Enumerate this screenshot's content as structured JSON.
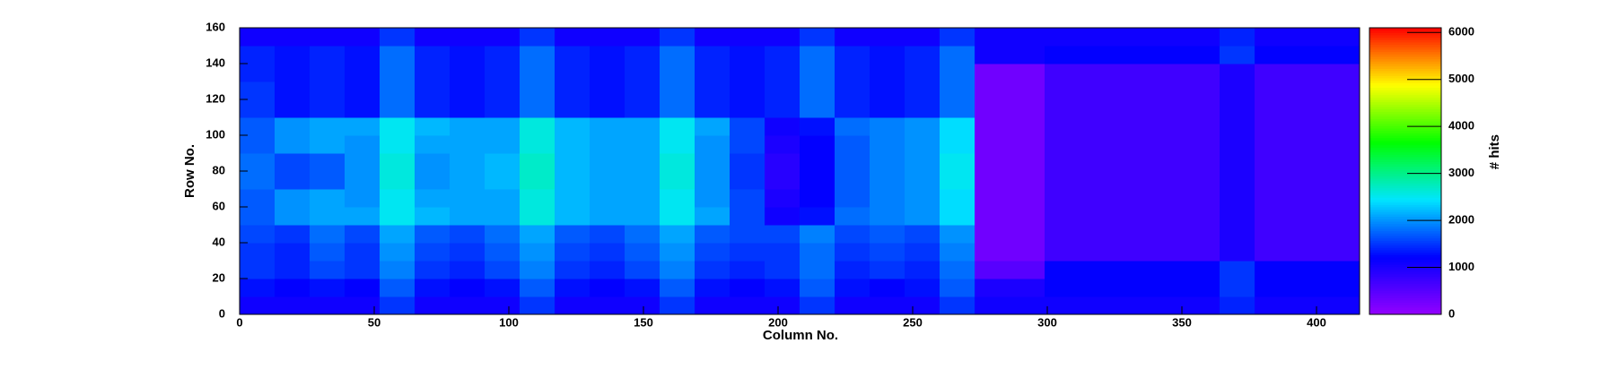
{
  "chart_data": {
    "type": "heatmap",
    "x_label": "Column No.",
    "y_label": "Row No.",
    "z_label": "# hits",
    "xbins": [
      0,
      13,
      26,
      39,
      52,
      65,
      78,
      91,
      104,
      117,
      130,
      143,
      156,
      169,
      182,
      195,
      208,
      221,
      234,
      247,
      260,
      273,
      286,
      299,
      312,
      325,
      338,
      351,
      364,
      377,
      390,
      403,
      416
    ],
    "ybins": [
      0,
      10,
      20,
      30,
      40,
      50,
      60,
      70,
      80,
      90,
      100,
      110,
      120,
      130,
      140,
      150,
      160
    ],
    "z": [
      [
        1100,
        1100,
        1100,
        1100,
        1500,
        1100,
        1100,
        1100,
        1500,
        1100,
        1100,
        1100,
        1500,
        1100,
        1100,
        1100,
        1500,
        1100,
        1100,
        1100,
        1500,
        1100,
        1100,
        1100,
        1100,
        1100,
        1100,
        1100,
        1400,
        1100,
        1100,
        1100
      ],
      [
        1300,
        1200,
        1300,
        1200,
        1700,
        1300,
        1200,
        1300,
        1700,
        1300,
        1200,
        1300,
        1700,
        1300,
        1200,
        1300,
        1700,
        1300,
        1200,
        1300,
        1700,
        1000,
        1000,
        1200,
        1200,
        1200,
        1200,
        1200,
        1500,
        1200,
        1200,
        1200
      ],
      [
        1500,
        1400,
        1600,
        1500,
        1900,
        1500,
        1400,
        1600,
        1900,
        1500,
        1400,
        1600,
        1900,
        1500,
        1400,
        1500,
        1800,
        1400,
        1500,
        1400,
        1800,
        500,
        500,
        1200,
        1200,
        1200,
        1200,
        1200,
        1500,
        1200,
        1200,
        1200
      ],
      [
        1500,
        1400,
        1700,
        1500,
        2000,
        1600,
        1500,
        1700,
        2000,
        1600,
        1500,
        1700,
        2000,
        1600,
        1500,
        1500,
        1800,
        1500,
        1600,
        1500,
        1900,
        300,
        300,
        700,
        700,
        700,
        700,
        700,
        1000,
        700,
        700,
        700
      ],
      [
        1600,
        1500,
        1800,
        1600,
        2100,
        1700,
        1600,
        1800,
        2100,
        1700,
        1600,
        1800,
        2100,
        1700,
        1600,
        1600,
        1900,
        1600,
        1700,
        1600,
        2000,
        300,
        300,
        700,
        700,
        700,
        700,
        700,
        1000,
        700,
        700,
        700
      ],
      [
        1700,
        2000,
        2100,
        2100,
        2500,
        2200,
        2100,
        2100,
        2600,
        2200,
        2100,
        2100,
        2500,
        2100,
        1600,
        1100,
        1300,
        1800,
        1900,
        2000,
        2400,
        300,
        300,
        700,
        700,
        700,
        700,
        700,
        1000,
        700,
        700,
        700
      ],
      [
        1700,
        2000,
        2100,
        2000,
        2500,
        2100,
        2100,
        2100,
        2600,
        2200,
        2100,
        2100,
        2500,
        2000,
        1600,
        1000,
        1200,
        1700,
        1900,
        2000,
        2400,
        300,
        300,
        700,
        700,
        700,
        700,
        700,
        1000,
        700,
        700,
        700
      ],
      [
        1800,
        1600,
        1700,
        2000,
        2600,
        2000,
        2100,
        2200,
        2700,
        2200,
        2100,
        2100,
        2600,
        2000,
        1500,
        900,
        1200,
        1700,
        1900,
        2000,
        2500,
        300,
        300,
        700,
        700,
        700,
        700,
        700,
        1000,
        700,
        700,
        700
      ],
      [
        1800,
        1600,
        1700,
        2000,
        2600,
        2000,
        2100,
        2200,
        2700,
        2200,
        2100,
        2100,
        2600,
        2000,
        1500,
        900,
        1200,
        1700,
        1900,
        2000,
        2500,
        300,
        300,
        700,
        700,
        700,
        700,
        700,
        1000,
        700,
        700,
        700
      ],
      [
        1700,
        2000,
        2100,
        2000,
        2500,
        2100,
        2100,
        2100,
        2600,
        2200,
        2100,
        2100,
        2500,
        2000,
        1600,
        1000,
        1200,
        1700,
        1900,
        2000,
        2400,
        300,
        300,
        700,
        700,
        700,
        700,
        700,
        1000,
        700,
        700,
        700
      ],
      [
        1700,
        2000,
        2100,
        2100,
        2500,
        2200,
        2100,
        2100,
        2600,
        2200,
        2100,
        2100,
        2500,
        2100,
        1600,
        1100,
        1300,
        1800,
        1900,
        2000,
        2400,
        300,
        300,
        700,
        700,
        700,
        700,
        700,
        1000,
        700,
        700,
        700
      ],
      [
        1500,
        1300,
        1400,
        1300,
        1800,
        1400,
        1300,
        1400,
        1800,
        1400,
        1300,
        1400,
        1800,
        1400,
        1300,
        1400,
        1800,
        1400,
        1300,
        1400,
        1800,
        300,
        300,
        700,
        700,
        700,
        700,
        700,
        1000,
        700,
        700,
        700
      ],
      [
        1500,
        1300,
        1400,
        1300,
        1800,
        1400,
        1300,
        1400,
        1800,
        1400,
        1300,
        1400,
        1800,
        1400,
        1300,
        1400,
        1800,
        1400,
        1300,
        1400,
        1800,
        300,
        300,
        700,
        700,
        700,
        700,
        700,
        1000,
        700,
        700,
        700
      ],
      [
        1400,
        1300,
        1400,
        1300,
        1800,
        1400,
        1300,
        1400,
        1800,
        1400,
        1300,
        1400,
        1800,
        1400,
        1300,
        1400,
        1800,
        1400,
        1300,
        1400,
        1800,
        300,
        300,
        700,
        700,
        700,
        700,
        700,
        1000,
        700,
        700,
        700
      ],
      [
        1400,
        1300,
        1400,
        1300,
        1800,
        1400,
        1300,
        1400,
        1800,
        1400,
        1300,
        1400,
        1800,
        1400,
        1300,
        1400,
        1800,
        1400,
        1300,
        1400,
        1800,
        1100,
        1100,
        1200,
        1200,
        1200,
        1200,
        1200,
        1500,
        1200,
        1200,
        1200
      ],
      [
        1100,
        1100,
        1100,
        1100,
        1500,
        1100,
        1100,
        1100,
        1500,
        1100,
        1100,
        1100,
        1500,
        1100,
        1100,
        1100,
        1500,
        1100,
        1100,
        1100,
        1500,
        1100,
        1100,
        1100,
        1100,
        1100,
        1100,
        1100,
        1400,
        1100,
        1100,
        1100
      ]
    ],
    "xlim": [
      0,
      416
    ],
    "ylim": [
      0,
      160
    ],
    "zlim": [
      0,
      6100
    ],
    "xticks": [
      0,
      50,
      100,
      150,
      200,
      250,
      300,
      350,
      400
    ],
    "yticks": [
      0,
      20,
      40,
      60,
      80,
      100,
      120,
      140,
      160
    ],
    "zticks": [
      0,
      1000,
      2000,
      3000,
      4000,
      5000,
      6000
    ],
    "palette": [
      "#9400ff",
      "#0000ff",
      "#00e5ff",
      "#00ff00",
      "#ffff00",
      "#ff0000"
    ]
  }
}
